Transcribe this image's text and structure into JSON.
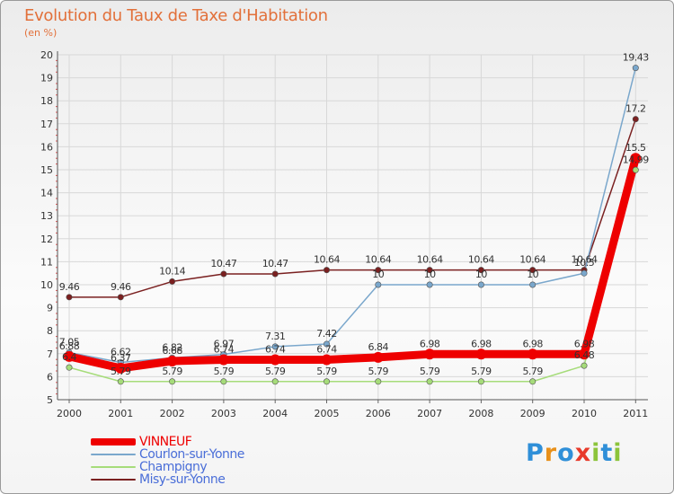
{
  "title": "Evolution du Taux de Taxe d'Habitation",
  "subtitle": "(en %)",
  "logo": {
    "text": "Proxiti",
    "letters": [
      "P",
      "r",
      "o",
      "x",
      "i",
      "t",
      "i"
    ],
    "colors": [
      "#2f8fd8",
      "#e8901a",
      "#2f8fd8",
      "#e83a2a",
      "#8cc43a",
      "#2f8fd8",
      "#8cc43a"
    ]
  },
  "chart_data": {
    "type": "line",
    "title": "Evolution du Taux de Taxe d'Habitation",
    "ylabel": "(en %)",
    "categories": [
      "2000",
      "2001",
      "2002",
      "2003",
      "2004",
      "2005",
      "2006",
      "2007",
      "2008",
      "2009",
      "2010",
      "2011"
    ],
    "ylim": [
      5,
      20
    ],
    "yticks": [
      "5",
      "6",
      "7",
      "8",
      "9",
      "10",
      "11",
      "12",
      "13",
      "14",
      "15",
      "16",
      "17",
      "18",
      "19",
      "20"
    ],
    "grid": true,
    "legend": "bottom-left",
    "series": [
      {
        "name": "VINNEUF",
        "color": "#ee0000",
        "values": [
          6.88,
          6.37,
          6.68,
          6.74,
          6.74,
          6.74,
          6.84,
          6.98,
          6.98,
          6.98,
          6.98,
          15.5
        ],
        "labels": [
          "6.88",
          "6.37",
          "6.68",
          "6.74",
          "6.74",
          "6.74",
          "6.84",
          "6.98",
          "6.98",
          "6.98",
          "6.98",
          "15.5"
        ]
      },
      {
        "name": "Courlon-sur-Yonne",
        "color": "#7aa7cc",
        "values": [
          7.05,
          6.62,
          6.82,
          6.97,
          7.31,
          7.42,
          10,
          10,
          10,
          10,
          10.5,
          19.43
        ],
        "labels": [
          "7.05",
          "6.62",
          "6.82",
          "6.97",
          "7.31",
          "7.42",
          "10",
          "10",
          "10",
          "10",
          "10.5",
          "19.43"
        ]
      },
      {
        "name": "Champigny",
        "color": "#a6dc7a",
        "values": [
          6.4,
          5.79,
          5.79,
          5.79,
          5.79,
          5.79,
          5.79,
          5.79,
          5.79,
          5.79,
          6.48,
          14.99
        ],
        "labels": [
          "6.4",
          "5.79",
          "5.79",
          "5.79",
          "5.79",
          "5.79",
          "5.79",
          "5.79",
          "5.79",
          "5.79",
          "6.48",
          "14.99"
        ]
      },
      {
        "name": "Misy-sur-Yonne",
        "color": "#7a2020",
        "values": [
          9.46,
          9.46,
          10.14,
          10.47,
          10.47,
          10.64,
          10.64,
          10.64,
          10.64,
          10.64,
          10.64,
          17.2
        ],
        "labels": [
          "9.46",
          "9.46",
          "10.14",
          "10.47",
          "10.47",
          "10.64",
          "10.64",
          "10.64",
          "10.64",
          "10.64",
          "10.64",
          "17.2"
        ]
      }
    ]
  }
}
